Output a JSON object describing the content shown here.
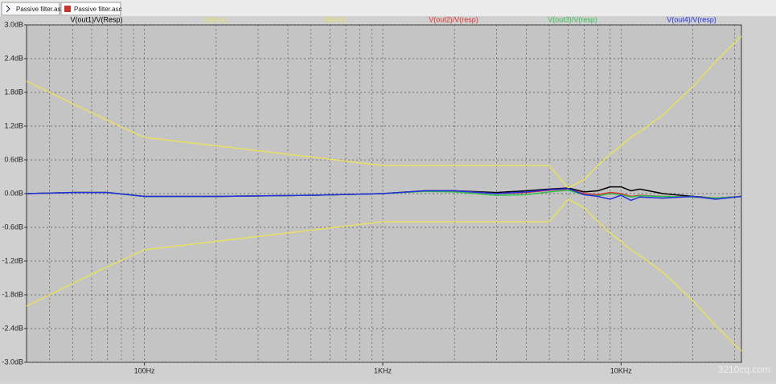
{
  "tabs": [
    "Passive filter.asc",
    "Passive filter.asc"
  ],
  "watermark": "3210cq.com",
  "chart_data": {
    "type": "line",
    "xscale": "log",
    "grid": true,
    "x": [
      32,
      50,
      70,
      100,
      200,
      500,
      1000,
      1500,
      2000,
      3000,
      4000,
      5000,
      6000,
      7000,
      8000,
      9000,
      10000,
      11000,
      12000,
      15000,
      20000,
      25000,
      32000
    ],
    "series": [
      {
        "name": "V(out1)/V(Resp)",
        "color": "#000000",
        "values": [
          0,
          0.02,
          0.02,
          -0.05,
          -0.05,
          -0.03,
          0,
          0.05,
          0.05,
          0.02,
          0.05,
          0.08,
          0.1,
          0.03,
          0.05,
          0.12,
          0.12,
          0.05,
          0.08,
          0.0,
          -0.05,
          -0.08,
          -0.05
        ]
      },
      {
        "name": "V(lim1)",
        "color": "#e8e060",
        "values": [
          2.0,
          1.6,
          1.3,
          1.0,
          0.85,
          0.65,
          0.5,
          0.5,
          0.5,
          0.5,
          0.5,
          0.5,
          0.1,
          0.25,
          0.5,
          0.7,
          0.85,
          1.0,
          1.1,
          1.4,
          1.9,
          2.35,
          2.8
        ]
      },
      {
        "name": "V(lim2)",
        "color": "#e8e060",
        "values": [
          -2.0,
          -1.6,
          -1.3,
          -1.0,
          -0.85,
          -0.65,
          -0.5,
          -0.5,
          -0.5,
          -0.5,
          -0.5,
          -0.5,
          -0.1,
          -0.25,
          -0.5,
          -0.7,
          -0.85,
          -1.0,
          -1.1,
          -1.4,
          -1.9,
          -2.35,
          -2.8
        ]
      },
      {
        "name": "V(out2)/V(resp)",
        "color": "#e03030",
        "values": [
          0,
          0.02,
          0.02,
          -0.05,
          -0.05,
          -0.03,
          0,
          0.05,
          0.05,
          0.0,
          0.02,
          0.06,
          0.08,
          0.0,
          -0.02,
          0.02,
          0.0,
          -0.05,
          -0.03,
          -0.05,
          -0.06,
          -0.08,
          -0.05
        ]
      },
      {
        "name": "V(out3)/V(resp)",
        "color": "#30c050",
        "values": [
          0,
          0.02,
          0.02,
          -0.05,
          -0.05,
          -0.03,
          0,
          0.04,
          0.03,
          -0.03,
          -0.02,
          0.03,
          0.06,
          -0.02,
          -0.04,
          0.0,
          -0.02,
          -0.06,
          -0.04,
          -0.05,
          -0.06,
          -0.08,
          -0.05
        ]
      },
      {
        "name": "V(out4)/V(resp)",
        "color": "#2030e0",
        "values": [
          0,
          0.02,
          0.02,
          -0.05,
          -0.05,
          -0.03,
          0,
          0.05,
          0.05,
          0.0,
          0.03,
          0.07,
          0.09,
          -0.02,
          -0.05,
          -0.1,
          -0.03,
          -0.12,
          -0.06,
          -0.08,
          -0.05,
          -0.1,
          -0.05
        ]
      }
    ],
    "xlim": [
      32,
      32000
    ],
    "xticks": [
      {
        "value": 100,
        "label": "100Hz"
      },
      {
        "value": 1000,
        "label": "1KHz"
      },
      {
        "value": 10000,
        "label": "10KHz"
      }
    ],
    "xgrid_minor": [
      40,
      50,
      60,
      70,
      80,
      90,
      200,
      300,
      400,
      500,
      600,
      700,
      800,
      900,
      2000,
      3000,
      4000,
      5000,
      6000,
      7000,
      8000,
      9000,
      20000,
      30000
    ],
    "ylim": [
      -3,
      3
    ],
    "yticks": [
      {
        "value": 3,
        "label": "3.0dB"
      },
      {
        "value": 2.4,
        "label": "2.4dB"
      },
      {
        "value": 1.8,
        "label": "1.8dB"
      },
      {
        "value": 1.2,
        "label": "1.2dB"
      },
      {
        "value": 0.6,
        "label": "0.6dB"
      },
      {
        "value": 0,
        "label": "0.0dB"
      },
      {
        "value": -0.6,
        "label": "-0.6dB"
      },
      {
        "value": -1.2,
        "label": "-1.2dB"
      },
      {
        "value": -1.8,
        "label": "-1.8dB"
      },
      {
        "value": -2.4,
        "label": "-2.4dB"
      },
      {
        "value": -3,
        "label": "-3.0dB"
      }
    ]
  }
}
